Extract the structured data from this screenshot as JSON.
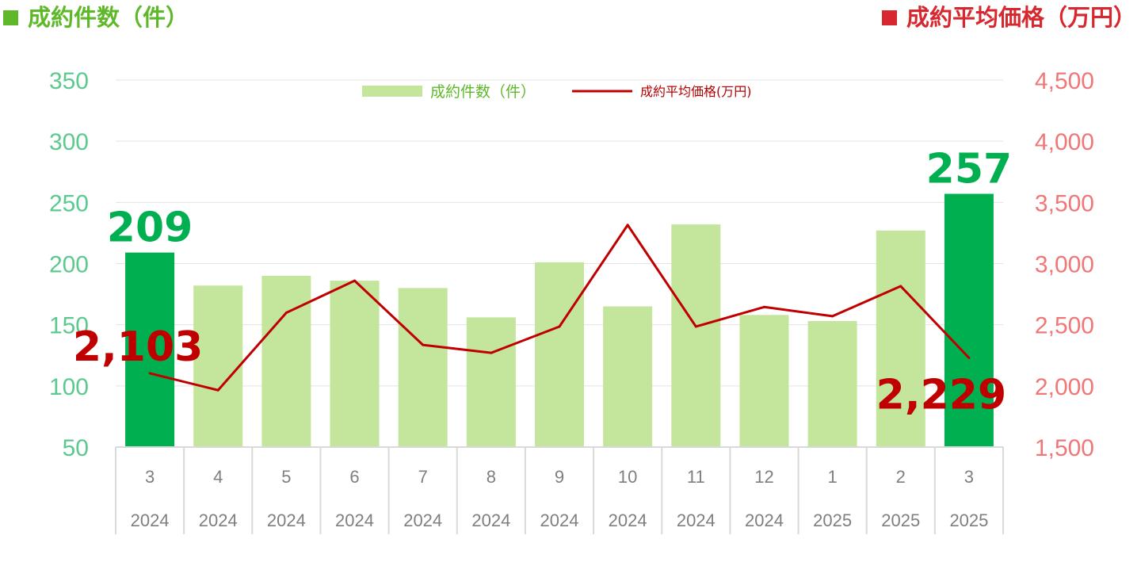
{
  "header": {
    "left_title": "成約件数（件）",
    "right_title": "成約平均価格（万円）",
    "left_color": "#5fb82a",
    "right_color": "#d7282f"
  },
  "chart_data": {
    "type": "bar",
    "categories": [
      "3",
      "4",
      "5",
      "6",
      "7",
      "8",
      "9",
      "10",
      "11",
      "12",
      "1",
      "2",
      "3"
    ],
    "years": [
      "2024",
      "2024",
      "2024",
      "2024",
      "2024",
      "2024",
      "2024",
      "2024",
      "2024",
      "2024",
      "2025",
      "2025",
      "2025"
    ],
    "series": [
      {
        "name": "成約件数（件）",
        "type": "bar",
        "axis": "left",
        "values": [
          209,
          182,
          190,
          186,
          180,
          156,
          201,
          165,
          232,
          158,
          153,
          227,
          257
        ],
        "color": "#c3e59c",
        "highlight_color": "#00b050",
        "highlight_indices": [
          0,
          12
        ]
      },
      {
        "name": "成約平均価格(万円)",
        "type": "line",
        "axis": "right",
        "values": [
          2103,
          1965,
          2598,
          2860,
          2335,
          2270,
          2485,
          3315,
          2485,
          2645,
          2570,
          2815,
          2229
        ],
        "color": "#c00000"
      }
    ],
    "data_labels": [
      {
        "series": 0,
        "index": 0,
        "text": "209"
      },
      {
        "series": 0,
        "index": 12,
        "text": "257"
      },
      {
        "series": 1,
        "index": 0,
        "text": "2,103"
      },
      {
        "series": 1,
        "index": 12,
        "text": "2,229"
      }
    ],
    "y_left": {
      "min": 50,
      "max": 350,
      "step": 50,
      "ticks": [
        "50",
        "100",
        "150",
        "200",
        "250",
        "300",
        "350"
      ]
    },
    "y_right": {
      "min": 1500,
      "max": 4500,
      "step": 500,
      "ticks": [
        "1,500",
        "2,000",
        "2,500",
        "3,000",
        "3,500",
        "4,000",
        "4,500"
      ]
    },
    "grid": true,
    "legend_position": "top"
  }
}
